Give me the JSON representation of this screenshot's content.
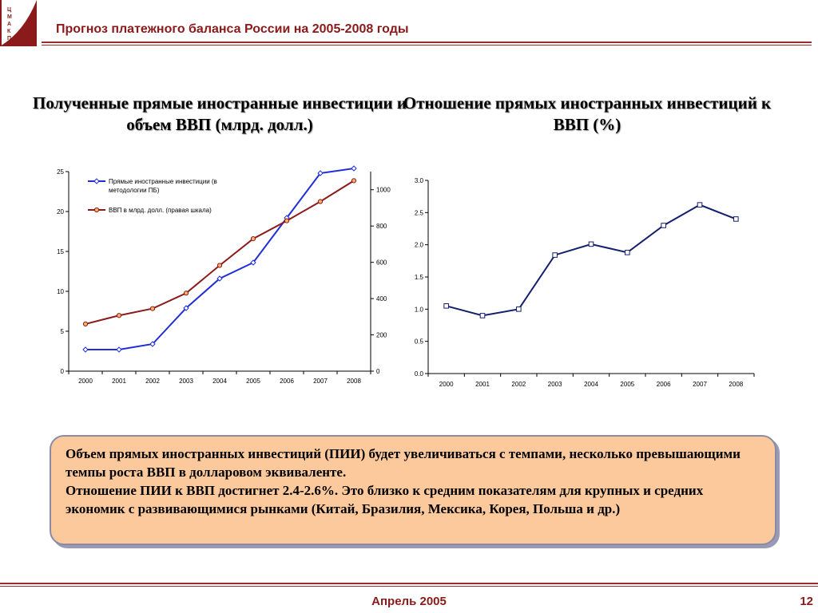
{
  "header": {
    "title": "Прогноз платежного баланса России на 2005-2008 годы",
    "logo_letters": "ЦМАКП"
  },
  "colors": {
    "brand": "#8b1a1a",
    "fdi_line": "#1f2ed8",
    "gdp_line": "#8b1a1a",
    "ratio_line": "#141f6e",
    "note_bg": "#fcc99d"
  },
  "chart_data": [
    {
      "type": "line",
      "title": "Полученные прямые иностранные инвестиции и объем ВВП (млрд. долл.)",
      "categories": [
        "2000",
        "2001",
        "2002",
        "2003",
        "2004",
        "2005",
        "2006",
        "2007",
        "2008"
      ],
      "series": [
        {
          "name": "Прямые иностранные инвестиции (в методологии ПБ)",
          "axis": "left",
          "values": [
            2.7,
            2.7,
            3.4,
            7.9,
            11.6,
            13.6,
            19.2,
            24.8,
            25.4
          ]
        },
        {
          "name": "ВВП в млрд. долл. (правая шкала)",
          "axis": "right",
          "values": [
            260,
            307,
            345,
            430,
            583,
            730,
            829,
            935,
            1050
          ]
        }
      ],
      "ylim": [
        0,
        25
      ],
      "yticks": [
        "0",
        "5",
        "10",
        "15",
        "20",
        "25"
      ],
      "y2lim": [
        0,
        1100
      ],
      "y2ticks": [
        "0",
        "200",
        "400",
        "600",
        "800",
        "1000"
      ],
      "legend": "top-left",
      "grid": false
    },
    {
      "type": "line",
      "title": "Отношение прямых иностранных инвестиций к ВВП (%)",
      "categories": [
        "2000",
        "2001",
        "2002",
        "2003",
        "2004",
        "2005",
        "2006",
        "2007",
        "2008"
      ],
      "series": [
        {
          "values": [
            1.05,
            0.9,
            1.0,
            1.84,
            2.01,
            1.88,
            2.3,
            2.62,
            2.4
          ]
        }
      ],
      "ylim": [
        0,
        3
      ],
      "yticks": [
        "0.0",
        "0.5",
        "1.0",
        "1.5",
        "2.0",
        "2.5",
        "3.0"
      ],
      "grid": false
    }
  ],
  "note": {
    "paragraph1": "Объем прямых иностранных инвестиций (ПИИ) будет увеличиваться с темпами, несколько превышающими темпы роста ВВП в долларовом эквиваленте.",
    "paragraph2": "Отношение ПИИ к ВВП достигнет 2.4-2.6%. Это близко к средним показателям для крупных и средних экономик с развивающимися рынками (Китай, Бразилия, Мексика, Корея, Польша и др.)"
  },
  "footer": {
    "date": "Апрель 2005",
    "page_number": "12"
  }
}
